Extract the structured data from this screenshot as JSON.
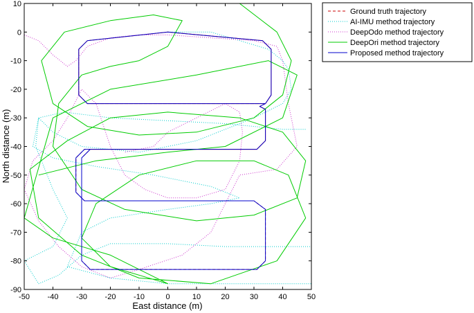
{
  "chart_data": {
    "type": "line",
    "xlabel": "East distance (m)",
    "ylabel": "North distance (m)",
    "xlim": [
      -50,
      50
    ],
    "ylim": [
      -90,
      10
    ],
    "xticks": [
      "-50",
      "-40",
      "-30",
      "-20",
      "-10",
      "0",
      "10",
      "20",
      "30",
      "40",
      "50"
    ],
    "yticks": [
      "10",
      "0",
      "-10",
      "-20",
      "-30",
      "-40",
      "-50",
      "-60",
      "-70",
      "-80",
      "-90"
    ],
    "grid": false,
    "legend_position": "top-right, outside plot",
    "series": [
      {
        "name": "Ground truth trajectory",
        "color": "#cc0000",
        "dash": "4,3",
        "points": [
          [
            0,
            0
          ],
          [
            33,
            -3
          ],
          [
            36,
            -6
          ],
          [
            36,
            -22
          ],
          [
            34,
            -25
          ],
          [
            -28,
            -25
          ],
          [
            -31,
            -22
          ],
          [
            -31,
            -6
          ],
          [
            -28,
            -3
          ],
          [
            0,
            0
          ],
          [
            33,
            -3
          ],
          [
            36,
            -6
          ],
          [
            36,
            -22
          ],
          [
            34,
            -25
          ],
          [
            -28,
            -25
          ],
          [
            -31,
            -22
          ],
          [
            -31,
            -6
          ],
          [
            -28,
            -3
          ],
          [
            0,
            0
          ],
          [
            33,
            -3
          ],
          [
            36,
            -6
          ],
          [
            36,
            -22
          ],
          [
            34,
            -25
          ],
          [
            32,
            -26
          ],
          [
            34,
            -27
          ],
          [
            34,
            -38
          ],
          [
            31,
            -41
          ],
          [
            -29,
            -41
          ],
          [
            -32,
            -44
          ],
          [
            -32,
            -56
          ],
          [
            -29,
            -59
          ],
          [
            30,
            -59
          ],
          [
            34,
            -62
          ],
          [
            34,
            -80
          ],
          [
            31,
            -83
          ],
          [
            -27,
            -83
          ],
          [
            -30,
            -80
          ],
          [
            -30,
            -44
          ],
          [
            -27,
            -41
          ],
          [
            31,
            -41
          ],
          [
            34,
            -38
          ],
          [
            34,
            -27
          ],
          [
            32,
            -26
          ]
        ]
      },
      {
        "name": "AI-IMU method trajectory",
        "color": "#00cccc",
        "dash": "1,2",
        "points": [
          [
            0,
            0
          ],
          [
            15,
            0
          ],
          [
            25,
            -3
          ],
          [
            35,
            -6
          ],
          [
            40,
            -10
          ],
          [
            42,
            -13
          ],
          [
            43,
            -20
          ],
          [
            40,
            -25
          ],
          [
            30,
            -30
          ],
          [
            10,
            -38
          ],
          [
            -10,
            -42
          ],
          [
            -30,
            -40
          ],
          [
            -40,
            -35
          ],
          [
            -45,
            -30
          ],
          [
            -46,
            -40
          ],
          [
            -40,
            -55
          ],
          [
            -35,
            -65
          ],
          [
            -40,
            -75
          ],
          [
            -50,
            -80
          ],
          [
            -45,
            -88
          ],
          [
            -38,
            -85
          ],
          [
            -30,
            -78
          ],
          [
            -20,
            -74
          ],
          [
            0,
            -74
          ],
          [
            20,
            -75
          ],
          [
            50,
            -75
          ],
          [
            50,
            -88
          ],
          [
            30,
            -88
          ],
          [
            0,
            -88
          ],
          [
            -20,
            -86
          ],
          [
            -35,
            -82
          ],
          [
            -30,
            -70
          ],
          [
            -20,
            -65
          ],
          [
            0,
            -62
          ],
          [
            15,
            -60
          ],
          [
            25,
            -58
          ],
          [
            15,
            -54
          ],
          [
            -5,
            -50
          ],
          [
            -25,
            -47
          ],
          [
            -40,
            -44
          ],
          [
            -47,
            -40
          ],
          [
            -45,
            -30
          ],
          [
            -36,
            -28
          ],
          [
            -20,
            -30
          ],
          [
            0,
            -31
          ],
          [
            20,
            -32
          ],
          [
            40,
            -34
          ],
          [
            48,
            -34
          ]
        ]
      },
      {
        "name": "DeepOdo method trajectory",
        "color": "#cc33cc",
        "dash": "1,2",
        "points": [
          [
            -50,
            -1
          ],
          [
            -45,
            -3
          ],
          [
            -40,
            -8
          ],
          [
            -35,
            -12
          ],
          [
            -32,
            -10
          ],
          [
            -28,
            -5
          ],
          [
            -20,
            -2
          ],
          [
            -10,
            -1
          ],
          [
            0,
            -1
          ],
          [
            15,
            -2
          ],
          [
            30,
            -3
          ],
          [
            38,
            -5
          ],
          [
            40,
            -10
          ],
          [
            42,
            -25
          ],
          [
            45,
            -40
          ],
          [
            38,
            -48
          ],
          [
            25,
            -50
          ],
          [
            20,
            -60
          ],
          [
            15,
            -70
          ],
          [
            5,
            -78
          ],
          [
            -10,
            -83
          ],
          [
            -20,
            -86
          ],
          [
            -30,
            -82
          ],
          [
            -38,
            -75
          ],
          [
            -45,
            -66
          ],
          [
            -50,
            -55
          ],
          [
            -47,
            -45
          ],
          [
            -40,
            -38
          ],
          [
            -35,
            -30
          ],
          [
            -30,
            -20
          ],
          [
            -25,
            -25
          ],
          [
            -20,
            -40
          ],
          [
            -15,
            -50
          ],
          [
            -8,
            -55
          ],
          [
            0,
            -58
          ],
          [
            10,
            -58
          ],
          [
            20,
            -55
          ],
          [
            25,
            -45
          ],
          [
            26,
            -35
          ],
          [
            25,
            -28
          ],
          [
            20,
            -25
          ],
          [
            10,
            -30
          ],
          [
            0,
            -35
          ],
          [
            -5,
            -40
          ],
          [
            -15,
            -42
          ]
        ]
      },
      {
        "name": "DeepOri method trajectory",
        "color": "#00cc00",
        "dash": "",
        "points": [
          [
            25,
            10
          ],
          [
            38,
            0
          ],
          [
            43,
            -10
          ],
          [
            40,
            -22
          ],
          [
            30,
            -30
          ],
          [
            10,
            -35
          ],
          [
            -10,
            -36
          ],
          [
            -28,
            -33
          ],
          [
            -40,
            -25
          ],
          [
            -44,
            -10
          ],
          [
            -36,
            0
          ],
          [
            -20,
            4
          ],
          [
            -5,
            6
          ],
          [
            5,
            4
          ],
          [
            0,
            -5
          ],
          [
            -10,
            -10
          ],
          [
            -20,
            -12
          ],
          [
            -30,
            -15
          ],
          [
            -38,
            -25
          ],
          [
            -40,
            -40
          ],
          [
            -30,
            -55
          ],
          [
            -15,
            -62
          ],
          [
            10,
            -66
          ],
          [
            30,
            -64
          ],
          [
            45,
            -58
          ],
          [
            48,
            -45
          ],
          [
            40,
            -35
          ],
          [
            25,
            -30
          ],
          [
            0,
            -28
          ],
          [
            -20,
            -30
          ],
          [
            -35,
            -38
          ],
          [
            -48,
            -48
          ],
          [
            -45,
            -65
          ],
          [
            -30,
            -78
          ],
          [
            -10,
            -86
          ],
          [
            15,
            -88
          ],
          [
            38,
            -80
          ],
          [
            48,
            -65
          ],
          [
            42,
            -50
          ],
          [
            30,
            -45
          ],
          [
            10,
            -45
          ],
          [
            -10,
            -50
          ],
          [
            -25,
            -60
          ],
          [
            -30,
            -72
          ],
          [
            -20,
            -82
          ],
          [
            0,
            -88
          ],
          [
            -20,
            -78
          ],
          [
            -40,
            -72
          ],
          [
            -50,
            -65
          ],
          [
            -40,
            -30
          ],
          [
            -20,
            -20
          ],
          [
            10,
            -15
          ],
          [
            35,
            -10
          ],
          [
            45,
            -15
          ],
          [
            40,
            -30
          ],
          [
            20,
            -40
          ],
          [
            0,
            -42
          ],
          [
            -25,
            -45
          ],
          [
            -45,
            -50
          ]
        ]
      },
      {
        "name": "Proposed method trajectory",
        "color": "#0000cc",
        "dash": "",
        "points": [
          [
            0,
            0
          ],
          [
            33,
            -3
          ],
          [
            36,
            -6
          ],
          [
            36,
            -22
          ],
          [
            34,
            -25
          ],
          [
            -28,
            -25
          ],
          [
            -31,
            -22
          ],
          [
            -31,
            -6
          ],
          [
            -28,
            -3
          ],
          [
            0,
            0
          ],
          [
            33,
            -3
          ],
          [
            36,
            -6
          ],
          [
            36,
            -22
          ],
          [
            34,
            -25
          ],
          [
            -28,
            -25
          ],
          [
            -31,
            -22
          ],
          [
            -31,
            -6
          ],
          [
            -28,
            -3
          ],
          [
            0,
            0
          ],
          [
            33,
            -3
          ],
          [
            36,
            -6
          ],
          [
            36,
            -22
          ],
          [
            34,
            -25
          ],
          [
            32,
            -26
          ],
          [
            34,
            -27
          ],
          [
            34,
            -38
          ],
          [
            31,
            -41
          ],
          [
            -29,
            -41
          ],
          [
            -32,
            -44
          ],
          [
            -32,
            -56
          ],
          [
            -29,
            -59
          ],
          [
            30,
            -59
          ],
          [
            34,
            -62
          ],
          [
            34,
            -80
          ],
          [
            31,
            -83
          ],
          [
            -27,
            -83
          ],
          [
            -30,
            -80
          ],
          [
            -30,
            -44
          ],
          [
            -27,
            -41
          ],
          [
            31,
            -41
          ],
          [
            34,
            -38
          ],
          [
            34,
            -27
          ],
          [
            32,
            -26
          ]
        ]
      }
    ]
  }
}
